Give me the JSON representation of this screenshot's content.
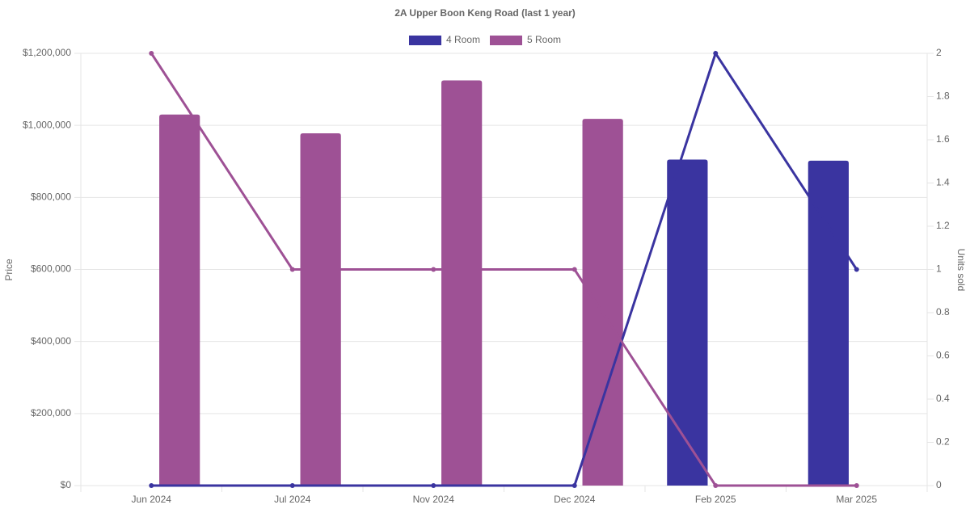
{
  "chart_data": {
    "type": "bar",
    "title": "2A Upper Boon Keng Road (last 1 year)",
    "y_label": "Price",
    "y2_label": "Units sold",
    "categories": [
      "Jun 2024",
      "Jul 2024",
      "Nov 2024",
      "Dec 2024",
      "Feb 2025",
      "Mar 2025"
    ],
    "series": [
      {
        "name": "4 Room",
        "color": "#3a34a0",
        "values": [
          null,
          null,
          null,
          null,
          905000,
          902000
        ],
        "units_sold": [
          0,
          0,
          0,
          0,
          2,
          1
        ]
      },
      {
        "name": "5 Room",
        "color": "#9e5195",
        "values": [
          1030000,
          978000,
          1125000,
          1018000,
          null,
          null
        ],
        "units_sold": [
          2,
          1,
          1,
          1,
          0,
          0
        ]
      }
    ],
    "ylim": [
      0,
      1200000
    ],
    "yticks": [
      {
        "value": 0,
        "label": "$0"
      },
      {
        "value": 200000,
        "label": "$200,000"
      },
      {
        "value": 400000,
        "label": "$400,000"
      },
      {
        "value": 600000,
        "label": "$600,000"
      },
      {
        "value": 800000,
        "label": "$800,000"
      },
      {
        "value": 1000000,
        "label": "$1,000,000"
      },
      {
        "value": 1200000,
        "label": "$1,200,000"
      }
    ],
    "y2lim": [
      0,
      2
    ],
    "y2ticks": [
      0,
      0.2,
      0.4,
      0.6,
      0.8,
      1,
      1.2,
      1.4,
      1.6,
      1.8,
      2
    ],
    "grid": true,
    "legend": "top"
  }
}
